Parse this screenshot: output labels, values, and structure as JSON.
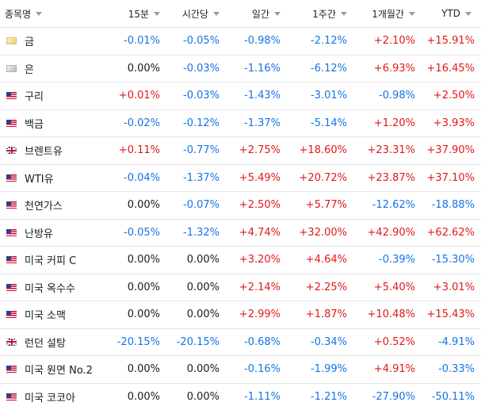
{
  "columns": [
    "종목명",
    "15분",
    "시간당",
    "일간",
    "1주간",
    "1개월간",
    "YTD"
  ],
  "rows": [
    {
      "name": "금",
      "flag": "gold",
      "values": [
        "-0.01%",
        "-0.05%",
        "-0.98%",
        "-2.12%",
        "+2.10%",
        "+15.91%"
      ]
    },
    {
      "name": "은",
      "flag": "silver",
      "values": [
        "0.00%",
        "-0.03%",
        "-1.16%",
        "-6.12%",
        "+6.93%",
        "+16.45%"
      ]
    },
    {
      "name": "구리",
      "flag": "us",
      "values": [
        "+0.01%",
        "-0.03%",
        "-1.43%",
        "-3.01%",
        "-0.98%",
        "+2.50%"
      ]
    },
    {
      "name": "백금",
      "flag": "us",
      "values": [
        "-0.02%",
        "-0.12%",
        "-1.37%",
        "-5.14%",
        "+1.20%",
        "+3.93%"
      ]
    },
    {
      "name": "브렌트유",
      "flag": "uk",
      "values": [
        "+0.11%",
        "-0.77%",
        "+2.75%",
        "+18.60%",
        "+23.31%",
        "+37.90%"
      ]
    },
    {
      "name": "WTI유",
      "flag": "us",
      "values": [
        "-0.04%",
        "-1.37%",
        "+5.49%",
        "+20.72%",
        "+23.87%",
        "+37.10%"
      ]
    },
    {
      "name": "천연가스",
      "flag": "us",
      "values": [
        "0.00%",
        "-0.07%",
        "+2.50%",
        "+5.77%",
        "-12.62%",
        "-18.88%"
      ]
    },
    {
      "name": "난방유",
      "flag": "us",
      "values": [
        "-0.05%",
        "-1.32%",
        "+4.74%",
        "+32.00%",
        "+42.90%",
        "+62.62%"
      ]
    },
    {
      "name": "미국 커피 C",
      "flag": "us",
      "values": [
        "0.00%",
        "0.00%",
        "+3.20%",
        "+4.64%",
        "-0.39%",
        "-15.30%"
      ]
    },
    {
      "name": "미국 옥수수",
      "flag": "us",
      "values": [
        "0.00%",
        "0.00%",
        "+2.14%",
        "+2.25%",
        "+5.40%",
        "+3.01%"
      ]
    },
    {
      "name": "미국 소맥",
      "flag": "us",
      "values": [
        "0.00%",
        "0.00%",
        "+2.99%",
        "+1.87%",
        "+10.48%",
        "+15.43%"
      ]
    },
    {
      "name": "런던 설탕",
      "flag": "uk",
      "values": [
        "-20.15%",
        "-20.15%",
        "-0.68%",
        "-0.34%",
        "+0.52%",
        "-4.91%"
      ]
    },
    {
      "name": "미국 원면 No.2",
      "flag": "us",
      "values": [
        "0.00%",
        "0.00%",
        "-0.16%",
        "-1.99%",
        "+4.91%",
        "-0.33%"
      ]
    },
    {
      "name": "미국 코코아",
      "flag": "us",
      "values": [
        "0.00%",
        "0.00%",
        "-1.11%",
        "-1.21%",
        "-27.90%",
        "-50.11%"
      ]
    }
  ],
  "colors": {
    "positive": "#e0181b",
    "negative": "#1673e6",
    "neutral": "#1a1a1a"
  },
  "icons": {
    "sort": "sort-caret-down-icon",
    "gold": "gold-bar-icon",
    "silver": "silver-bar-icon",
    "us": "us-flag-icon",
    "uk": "uk-flag-icon"
  }
}
